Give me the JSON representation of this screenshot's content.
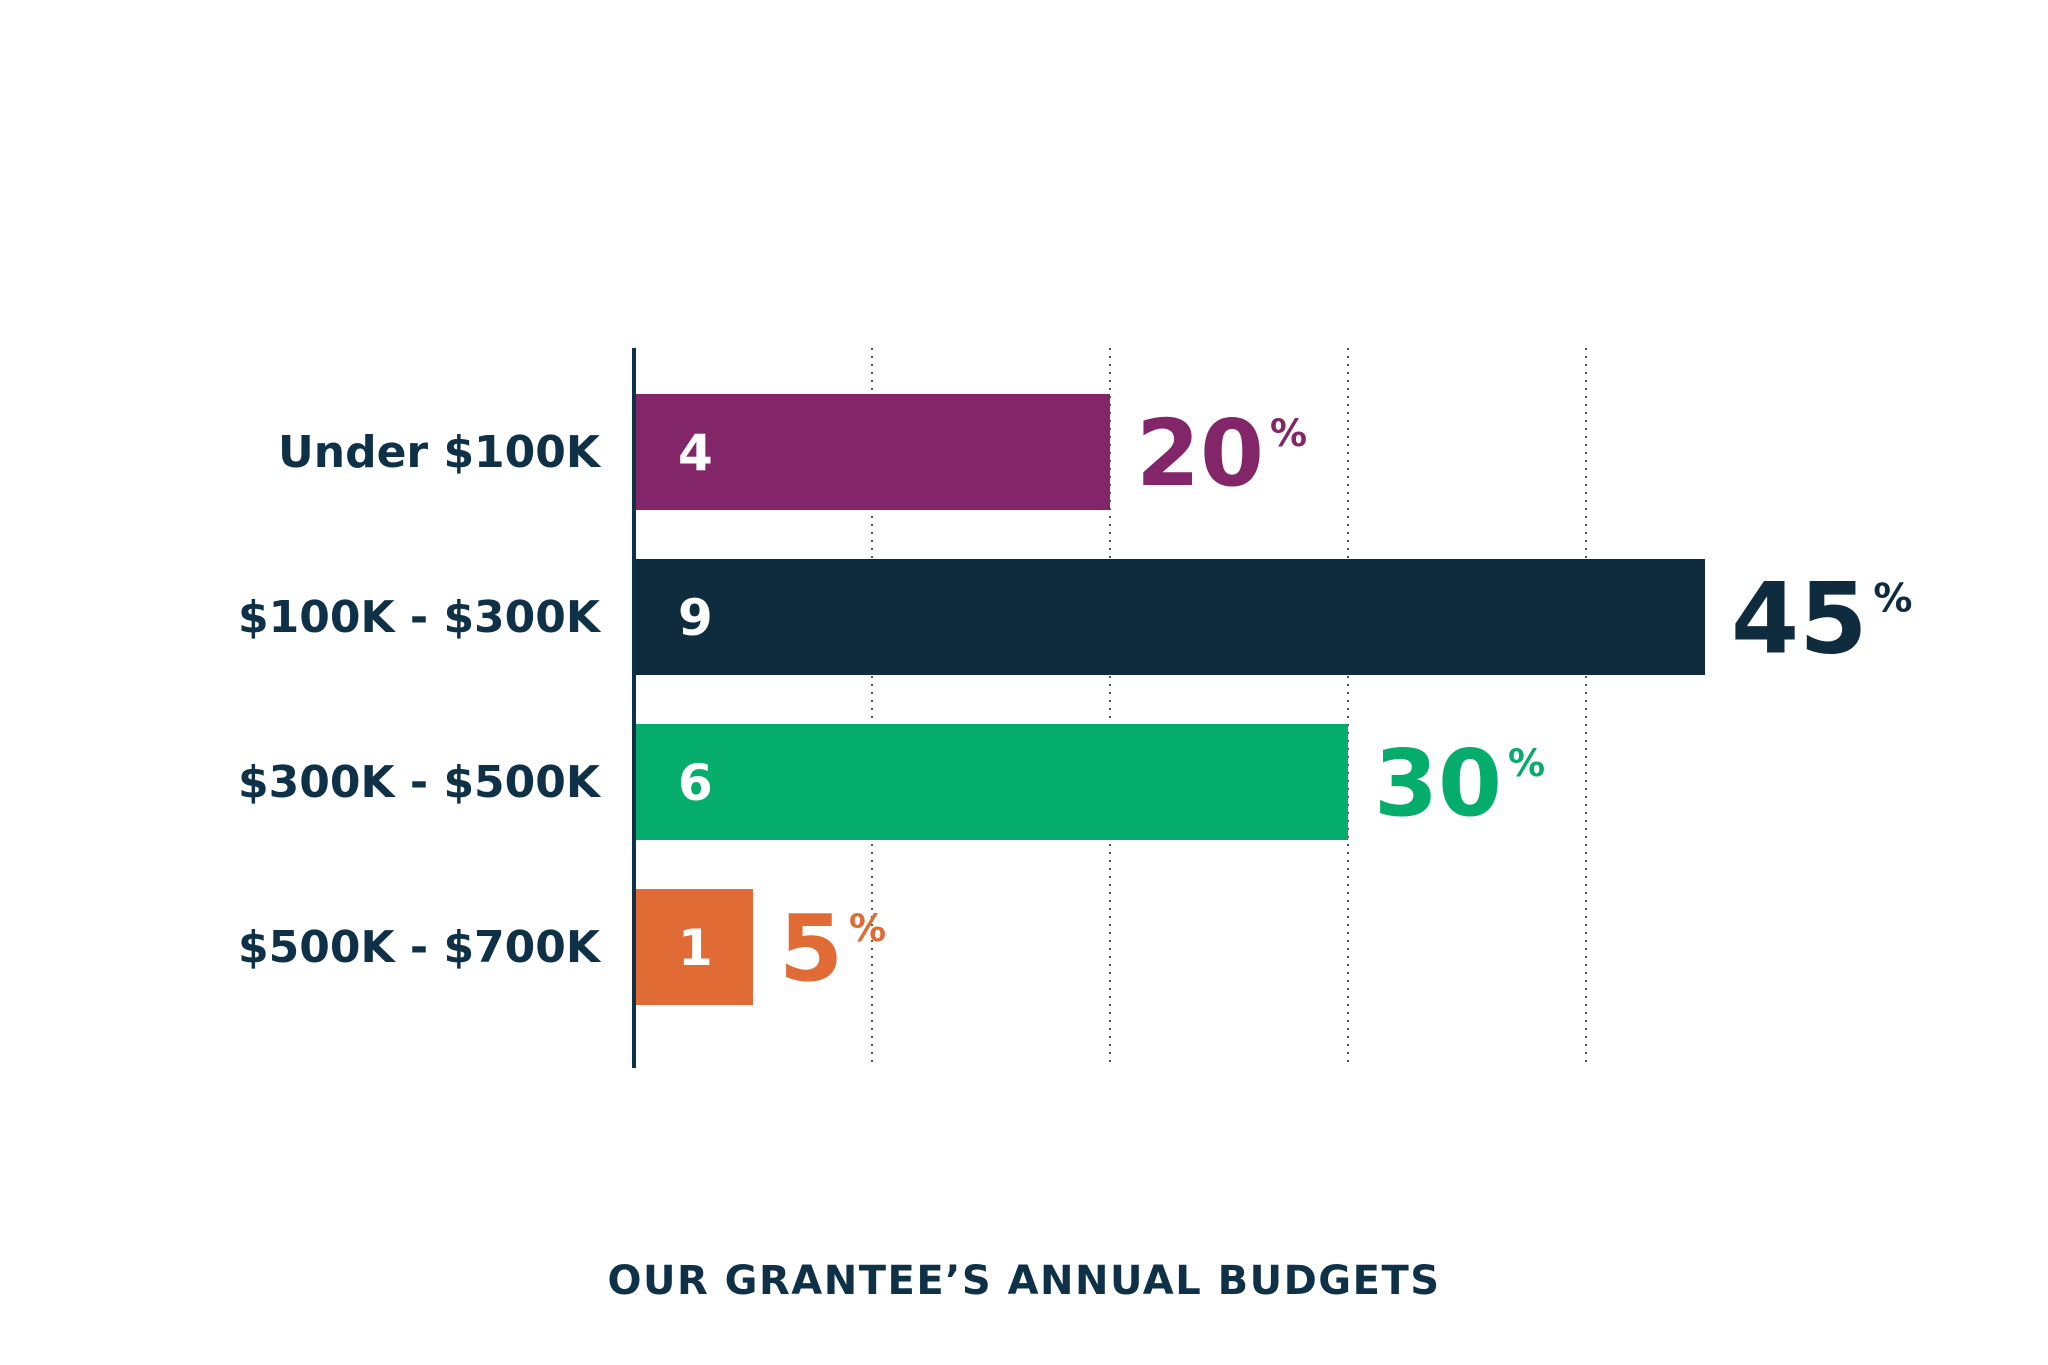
{
  "chart_data": {
    "type": "bar",
    "orientation": "horizontal",
    "title": "OUR GRANTEE’S ANNUAL BUDGETS",
    "categories": [
      "Under $100K",
      "$100K - $300K",
      "$300K - $500K",
      "$500K - $700K"
    ],
    "values": [
      4,
      9,
      6,
      1
    ],
    "percent_labels": [
      "20",
      "45",
      "30",
      "5"
    ],
    "percent_sign": "%",
    "xlim": [
      0,
      10
    ],
    "grid": true,
    "colors": [
      "#822569",
      "#0f2c3f",
      "#05ad6c",
      "#e06b35"
    ],
    "percent_colors": [
      "#822569",
      "#0f2c3f",
      "#05ad6c",
      "#e06b35"
    ]
  },
  "theme": {
    "text": "#0f3148",
    "axis": "#0f3148",
    "grid": "#555555"
  }
}
